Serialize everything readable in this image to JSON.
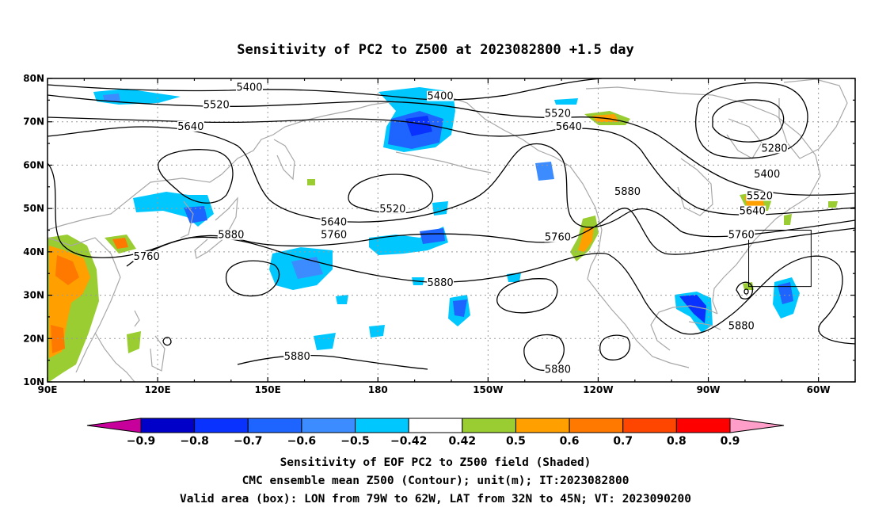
{
  "title": "Sensitivity of PC2 to Z500 at 2023082800 +1.5 day",
  "axes": {
    "lat_labels": [
      "80N",
      "70N",
      "60N",
      "50N",
      "40N",
      "30N",
      "20N",
      "10N"
    ],
    "lon_labels": [
      "90E",
      "120E",
      "150E",
      "180",
      "150W",
      "120W",
      "90W",
      "60W"
    ],
    "lat_range": [
      10,
      80
    ],
    "lon_range": [
      90,
      310
    ],
    "grid": "dotted"
  },
  "contour_labels": [
    {
      "text": "5400",
      "lon": 145,
      "lat": 77.5
    },
    {
      "text": "5400",
      "lon": 197,
      "lat": 75.5
    },
    {
      "text": "5520",
      "lon": 136,
      "lat": 73.5
    },
    {
      "text": "5640",
      "lon": 129,
      "lat": 68.5
    },
    {
      "text": "5520",
      "lon": 229,
      "lat": 71.5
    },
    {
      "text": "5640",
      "lon": 232,
      "lat": 68.5
    },
    {
      "text": "5280",
      "lon": 288,
      "lat": 63.5
    },
    {
      "text": "5400",
      "lon": 286,
      "lat": 57.5
    },
    {
      "text": "5880",
      "lon": 248,
      "lat": 53.5
    },
    {
      "text": "5520",
      "lon": 284,
      "lat": 52.5
    },
    {
      "text": "5520",
      "lon": 184,
      "lat": 49.5
    },
    {
      "text": "5640",
      "lon": 282,
      "lat": 49.0
    },
    {
      "text": "5640",
      "lon": 168,
      "lat": 46.5
    },
    {
      "text": "5760",
      "lon": 168,
      "lat": 43.5
    },
    {
      "text": "5880",
      "lon": 140,
      "lat": 43.5
    },
    {
      "text": "5760",
      "lon": 229,
      "lat": 43.0
    },
    {
      "text": "5760",
      "lon": 279,
      "lat": 43.5
    },
    {
      "text": "5760",
      "lon": 117,
      "lat": 38.5
    },
    {
      "text": "5880",
      "lon": 197,
      "lat": 32.5
    },
    {
      "text": "5880",
      "lon": 279,
      "lat": 22.5
    },
    {
      "text": "5880",
      "lon": 158,
      "lat": 15.5
    },
    {
      "text": "5880",
      "lon": 229,
      "lat": 12.5
    }
  ],
  "valid_box": {
    "lon": [
      281,
      298
    ],
    "lat": [
      32,
      45
    ]
  },
  "colorbar": {
    "labels": [
      "−0.9",
      "−0.8",
      "−0.7",
      "−0.6",
      "−0.5",
      "−0.42",
      "0.42",
      "0.5",
      "0.6",
      "0.7",
      "0.8",
      "0.9"
    ],
    "colors": [
      "#c8009b",
      "#0000c8",
      "#0a32ff",
      "#1e64ff",
      "#3c8cff",
      "#00c8ff",
      "#ffffff",
      "#9acd32",
      "#ffa000",
      "#ff7800",
      "#ff4600",
      "#ff0000",
      "#ff9ec8"
    ]
  },
  "captions": [
    "Sensitivity of EOF PC2 to Z500 field (Shaded)",
    "CMC ensemble mean Z500 (Contour); unit(m); IT:2023082800",
    "Valid area (box): LON from 79W to 62W, LAT from 32N to 45N; VT: 2023090200"
  ]
}
